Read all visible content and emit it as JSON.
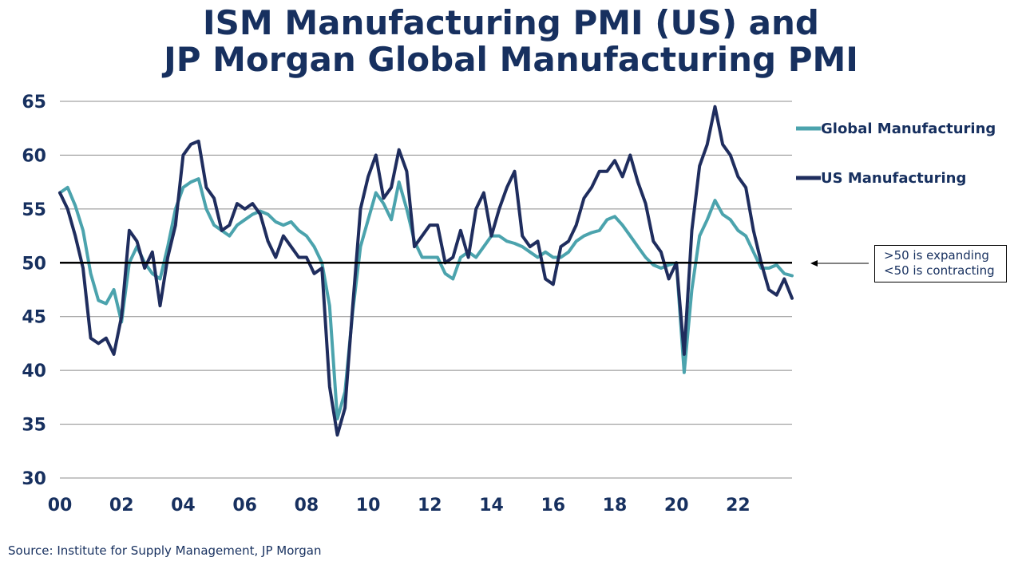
{
  "title": {
    "line1": "ISM Manufacturing PMI (US) and",
    "line2": "JP Morgan Global Manufacturing PMI"
  },
  "annotation": {
    "line1": ">50 is expanding",
    "line2": "<50 is contracting"
  },
  "source": "Source:  Institute for Supply Management, JP Morgan",
  "chart_data": {
    "type": "line",
    "title": "ISM Manufacturing PMI (US) and JP Morgan Global Manufacturing PMI",
    "xlabel": "",
    "ylabel": "",
    "ylim": [
      30,
      65
    ],
    "xlim": [
      2000,
      2023.75
    ],
    "yticks": [
      30,
      35,
      40,
      45,
      50,
      55,
      60,
      65
    ],
    "xticks": [
      2000,
      2002,
      2004,
      2006,
      2008,
      2010,
      2012,
      2014,
      2016,
      2018,
      2020,
      2022
    ],
    "xtick_labels": [
      "00",
      "02",
      "04",
      "06",
      "08",
      "10",
      "12",
      "14",
      "16",
      "18",
      "20",
      "22"
    ],
    "grid": "horizontal",
    "legend_position": "top-right",
    "reference_line": 50,
    "series": [
      {
        "name": "Global Manufacturing",
        "color": "#4ba3ad",
        "x": [
          2000,
          2000.25,
          2000.5,
          2000.75,
          2001,
          2001.25,
          2001.5,
          2001.75,
          2002,
          2002.25,
          2002.5,
          2002.75,
          2003,
          2003.25,
          2003.5,
          2003.75,
          2004,
          2004.25,
          2004.5,
          2004.75,
          2005,
          2005.25,
          2005.5,
          2005.75,
          2006,
          2006.25,
          2006.5,
          2006.75,
          2007,
          2007.25,
          2007.5,
          2007.75,
          2008,
          2008.25,
          2008.5,
          2008.75,
          2009,
          2009.25,
          2009.5,
          2009.75,
          2010,
          2010.25,
          2010.5,
          2010.75,
          2011,
          2011.25,
          2011.5,
          2011.75,
          2012,
          2012.25,
          2012.5,
          2012.75,
          2013,
          2013.25,
          2013.5,
          2013.75,
          2014,
          2014.25,
          2014.5,
          2014.75,
          2015,
          2015.25,
          2015.5,
          2015.75,
          2016,
          2016.25,
          2016.5,
          2016.75,
          2017,
          2017.25,
          2017.5,
          2017.75,
          2018,
          2018.25,
          2018.5,
          2018.75,
          2019,
          2019.25,
          2019.5,
          2019.75,
          2020,
          2020.25,
          2020.5,
          2020.75,
          2021,
          2021.25,
          2021.5,
          2021.75,
          2022,
          2022.25,
          2022.5,
          2022.75,
          2023,
          2023.25,
          2023.5,
          2023.75
        ],
        "values": [
          56.5,
          57.0,
          55.3,
          53.0,
          49.0,
          46.5,
          46.2,
          47.5,
          44.5,
          50.0,
          51.5,
          50.0,
          49.0,
          48.5,
          51.5,
          55.0,
          57.0,
          57.5,
          57.8,
          55.0,
          53.5,
          53.0,
          52.5,
          53.5,
          54.0,
          54.5,
          54.8,
          54.5,
          53.8,
          53.5,
          53.8,
          53.0,
          52.5,
          51.5,
          50.0,
          46.0,
          35.5,
          38.0,
          45.5,
          51.5,
          54.0,
          56.5,
          55.5,
          54.0,
          57.5,
          55.0,
          52.0,
          50.5,
          50.5,
          50.5,
          49.0,
          48.5,
          50.5,
          51.0,
          50.5,
          51.5,
          52.5,
          52.5,
          52.0,
          51.8,
          51.5,
          51.0,
          50.5,
          51.0,
          50.5,
          50.5,
          51.0,
          52.0,
          52.5,
          52.8,
          53.0,
          54.0,
          54.3,
          53.5,
          52.5,
          51.5,
          50.5,
          49.8,
          49.5,
          49.8,
          50.0,
          39.8,
          47.5,
          52.5,
          54.0,
          55.8,
          54.5,
          54.0,
          53.0,
          52.5,
          51.0,
          49.5,
          49.5,
          49.8,
          49.0,
          48.8
        ]
      },
      {
        "name": "US Manufacturing",
        "color": "#1f2d5e",
        "x": [
          2000,
          2000.25,
          2000.5,
          2000.75,
          2001,
          2001.25,
          2001.5,
          2001.75,
          2002,
          2002.25,
          2002.5,
          2002.75,
          2003,
          2003.25,
          2003.5,
          2003.75,
          2004,
          2004.25,
          2004.5,
          2004.75,
          2005,
          2005.25,
          2005.5,
          2005.75,
          2006,
          2006.25,
          2006.5,
          2006.75,
          2007,
          2007.25,
          2007.5,
          2007.75,
          2008,
          2008.25,
          2008.5,
          2008.75,
          2009,
          2009.25,
          2009.5,
          2009.75,
          2010,
          2010.25,
          2010.5,
          2010.75,
          2011,
          2011.25,
          2011.5,
          2011.75,
          2012,
          2012.25,
          2012.5,
          2012.75,
          2013,
          2013.25,
          2013.5,
          2013.75,
          2014,
          2014.25,
          2014.5,
          2014.75,
          2015,
          2015.25,
          2015.5,
          2015.75,
          2016,
          2016.25,
          2016.5,
          2016.75,
          2017,
          2017.25,
          2017.5,
          2017.75,
          2018,
          2018.25,
          2018.5,
          2018.75,
          2019,
          2019.25,
          2019.5,
          2019.75,
          2020,
          2020.25,
          2020.5,
          2020.75,
          2021,
          2021.25,
          2021.5,
          2021.75,
          2022,
          2022.25,
          2022.5,
          2022.75,
          2023,
          2023.25,
          2023.5,
          2023.75
        ],
        "values": [
          56.5,
          55.0,
          52.5,
          49.5,
          43.0,
          42.5,
          43.0,
          41.5,
          45.0,
          53.0,
          52.0,
          49.5,
          51.0,
          46.0,
          50.5,
          53.5,
          60.0,
          61.0,
          61.3,
          57.0,
          56.0,
          53.0,
          53.5,
          55.5,
          55.0,
          55.5,
          54.5,
          52.0,
          50.5,
          52.5,
          51.5,
          50.5,
          50.5,
          49.0,
          49.5,
          38.5,
          34.0,
          36.5,
          46.0,
          55.0,
          58.0,
          60.0,
          56.0,
          57.0,
          60.5,
          58.5,
          51.5,
          52.5,
          53.5,
          53.5,
          50.0,
          50.5,
          53.0,
          50.5,
          55.0,
          56.5,
          52.5,
          55.0,
          57.0,
          58.5,
          52.5,
          51.5,
          52.0,
          48.5,
          48.0,
          51.5,
          52.0,
          53.5,
          56.0,
          57.0,
          58.5,
          58.5,
          59.5,
          58.0,
          60.0,
          57.5,
          55.5,
          52.0,
          51.0,
          48.5,
          50.0,
          41.5,
          53.0,
          59.0,
          61.0,
          64.5,
          61.0,
          60.0,
          58.0,
          57.0,
          53.0,
          50.0,
          47.5,
          47.0,
          48.5,
          46.7
        ]
      }
    ]
  }
}
